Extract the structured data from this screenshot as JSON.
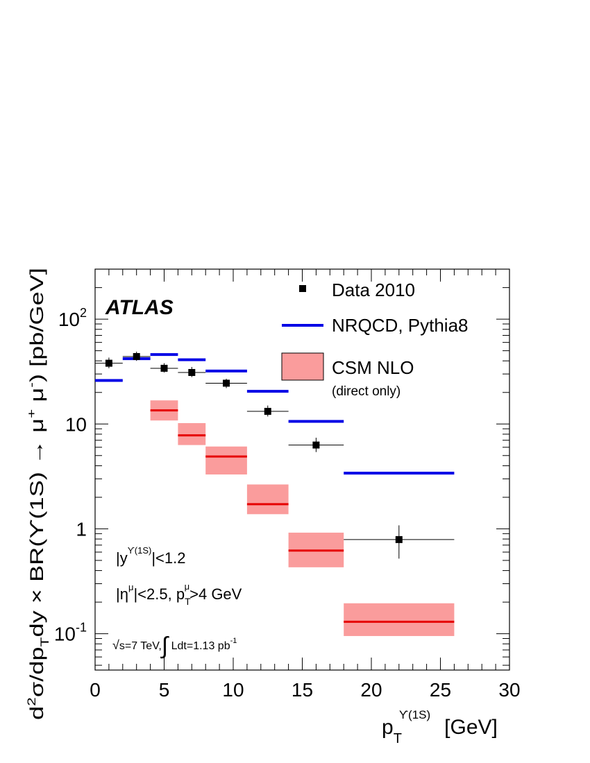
{
  "chart_data": {
    "type": "scatter",
    "y_scale": "log",
    "xlim": [
      0,
      30
    ],
    "ylim": [
      0.045,
      300
    ],
    "x_ticks": [
      0,
      5,
      10,
      15,
      20,
      25,
      30
    ],
    "y_ticks": [
      {
        "value": 0.1,
        "base": "10",
        "exp": "-1"
      },
      {
        "value": 1,
        "base": "1",
        "exp": ""
      },
      {
        "value": 10,
        "base": "10",
        "exp": ""
      },
      {
        "value": 100,
        "base": "10",
        "exp": "2"
      }
    ],
    "xlabel": {
      "main": "p",
      "sub": "T",
      "sup": "ϒ(1S)",
      "unit": "[GeV]"
    },
    "ylabel": {
      "p1": "d",
      "p1sup": "2",
      "p2": "σ/dp",
      "p2sub": "T",
      "p3": "dy × BR(ϒ(1S) → μ",
      "p3sup": "+",
      "p4": " μ",
      "p4sup": "-",
      "p5": ")  [pb/GeV]"
    },
    "experiment": "ATLAS",
    "annotations": {
      "rapidity": {
        "a": "|y",
        "sup": "ϒ(1S)",
        "b": "|<1.2"
      },
      "eta": {
        "a": "|η",
        "sup1": "μ",
        "b": "|<2.5, p",
        "sub": "T",
        "sup2": "μ",
        "c": ">4 GeV"
      },
      "lumi": {
        "sqrt": "√",
        "s": "s=7 TeV,",
        "integral": "∫",
        "b": " Ldt=1.13 pb",
        "sup": "-1"
      }
    },
    "legend": {
      "position": "top-right",
      "entries": [
        {
          "label": "Data 2010",
          "sublabel": "",
          "style": "marker"
        },
        {
          "label": "NRQCD, Pythia8",
          "sublabel": "",
          "style": "line"
        },
        {
          "label": "CSM NLO",
          "sublabel": "(direct only)",
          "style": "box"
        }
      ]
    },
    "colors": {
      "data": "#000000",
      "nrqcd": "#0000e6",
      "csm_fill": "#fa9c9c",
      "csm_line": "#e60000"
    },
    "series": [
      {
        "name": "Data 2010",
        "points": [
          {
            "x": 1,
            "xlo": 0,
            "xhi": 2,
            "y": 38,
            "ylo": 34,
            "yhi": 43
          },
          {
            "x": 3,
            "xlo": 2,
            "xhi": 4,
            "y": 44,
            "ylo": 40,
            "yhi": 49
          },
          {
            "x": 5,
            "xlo": 4,
            "xhi": 6,
            "y": 34,
            "ylo": 31,
            "yhi": 38
          },
          {
            "x": 7,
            "xlo": 6,
            "xhi": 8,
            "y": 31,
            "ylo": 28,
            "yhi": 35
          },
          {
            "x": 9.5,
            "xlo": 8,
            "xhi": 11,
            "y": 24.5,
            "ylo": 22,
            "yhi": 27
          },
          {
            "x": 12.5,
            "xlo": 11,
            "xhi": 14,
            "y": 13.2,
            "ylo": 11.8,
            "yhi": 15
          },
          {
            "x": 16,
            "xlo": 14,
            "xhi": 18,
            "y": 6.3,
            "ylo": 5.4,
            "yhi": 7.4
          },
          {
            "x": 22,
            "xlo": 18,
            "xhi": 26,
            "y": 0.79,
            "ylo": 0.52,
            "yhi": 1.08
          }
        ]
      },
      {
        "name": "NRQCD, Pythia8",
        "bins": [
          {
            "xlo": 0,
            "xhi": 2,
            "y": 26
          },
          {
            "xlo": 2,
            "xhi": 4,
            "y": 42
          },
          {
            "xlo": 4,
            "xhi": 6,
            "y": 46
          },
          {
            "xlo": 6,
            "xhi": 8,
            "y": 41
          },
          {
            "xlo": 8,
            "xhi": 11,
            "y": 32
          },
          {
            "xlo": 11,
            "xhi": 14,
            "y": 20.5
          },
          {
            "xlo": 14,
            "xhi": 18,
            "y": 10.6
          },
          {
            "xlo": 18,
            "xhi": 26,
            "y": 3.4
          }
        ]
      },
      {
        "name": "CSM NLO",
        "bins": [
          {
            "xlo": 4,
            "xhi": 6,
            "y": 13.5,
            "ylo": 10.8,
            "yhi": 16.8
          },
          {
            "xlo": 6,
            "xhi": 8,
            "y": 7.8,
            "ylo": 6.3,
            "yhi": 10.2
          },
          {
            "xlo": 8,
            "xhi": 11,
            "y": 4.9,
            "ylo": 3.3,
            "yhi": 6.1
          },
          {
            "xlo": 11,
            "xhi": 14,
            "y": 1.72,
            "ylo": 1.38,
            "yhi": 2.65
          },
          {
            "xlo": 14,
            "xhi": 18,
            "y": 0.62,
            "ylo": 0.43,
            "yhi": 0.92
          },
          {
            "xlo": 18,
            "xhi": 26,
            "y": 0.13,
            "ylo": 0.095,
            "yhi": 0.195
          }
        ]
      }
    ]
  }
}
